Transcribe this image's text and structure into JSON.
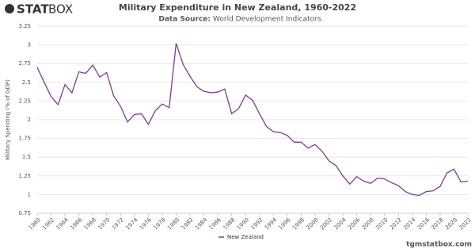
{
  "logo": {
    "bold": "STAT",
    "light": "BOX"
  },
  "footer": "tgmstatbox.com",
  "chart_data": {
    "type": "line",
    "title": "Military Expenditure in New Zealand, 1960-2022",
    "subtitle_label": "Data Source:",
    "subtitle": "World Development Indicators.",
    "y_label": "Military Spending (% of GDP)",
    "x": [
      1960,
      1961,
      1962,
      1963,
      1964,
      1965,
      1966,
      1967,
      1968,
      1969,
      1970,
      1971,
      1972,
      1973,
      1974,
      1975,
      1976,
      1977,
      1978,
      1979,
      1980,
      1981,
      1982,
      1983,
      1984,
      1985,
      1986,
      1987,
      1988,
      1989,
      1990,
      1991,
      1992,
      1993,
      1994,
      1995,
      1996,
      1997,
      1998,
      1999,
      2000,
      2001,
      2002,
      2003,
      2004,
      2005,
      2006,
      2007,
      2008,
      2009,
      2010,
      2011,
      2012,
      2013,
      2014,
      2015,
      2016,
      2017,
      2018,
      2019,
      2020,
      2021,
      2022
    ],
    "series": [
      {
        "name": "New Zealand",
        "color": "#7b3f8c",
        "values": [
          2.7,
          2.5,
          2.31,
          2.2,
          2.47,
          2.36,
          2.64,
          2.62,
          2.73,
          2.57,
          2.63,
          2.32,
          2.18,
          1.97,
          2.07,
          2.08,
          1.94,
          2.12,
          2.21,
          2.16,
          3.02,
          2.74,
          2.58,
          2.44,
          2.38,
          2.36,
          2.37,
          2.41,
          2.08,
          2.15,
          2.33,
          2.26,
          2.08,
          1.91,
          1.84,
          1.83,
          1.79,
          1.7,
          1.7,
          1.62,
          1.67,
          1.58,
          1.45,
          1.39,
          1.25,
          1.14,
          1.24,
          1.18,
          1.15,
          1.22,
          1.21,
          1.16,
          1.12,
          1.04,
          1.0,
          0.99,
          1.04,
          1.05,
          1.11,
          1.29,
          1.34,
          1.17,
          1.18
        ]
      }
    ],
    "xlim": [
      1960,
      2022
    ],
    "xticks": [
      1960,
      1962,
      1964,
      1966,
      1968,
      1970,
      1972,
      1974,
      1976,
      1978,
      1980,
      1982,
      1984,
      1986,
      1988,
      1990,
      1992,
      1994,
      1996,
      1998,
      2000,
      2002,
      2004,
      2006,
      2008,
      2010,
      2012,
      2014,
      2016,
      2018,
      2020,
      2022
    ],
    "ylim": [
      0.75,
      3.25
    ],
    "yticks": [
      0.75,
      1,
      1.25,
      1.5,
      1.75,
      2,
      2.25,
      2.5,
      2.75,
      3,
      3.25
    ],
    "grid": true
  }
}
